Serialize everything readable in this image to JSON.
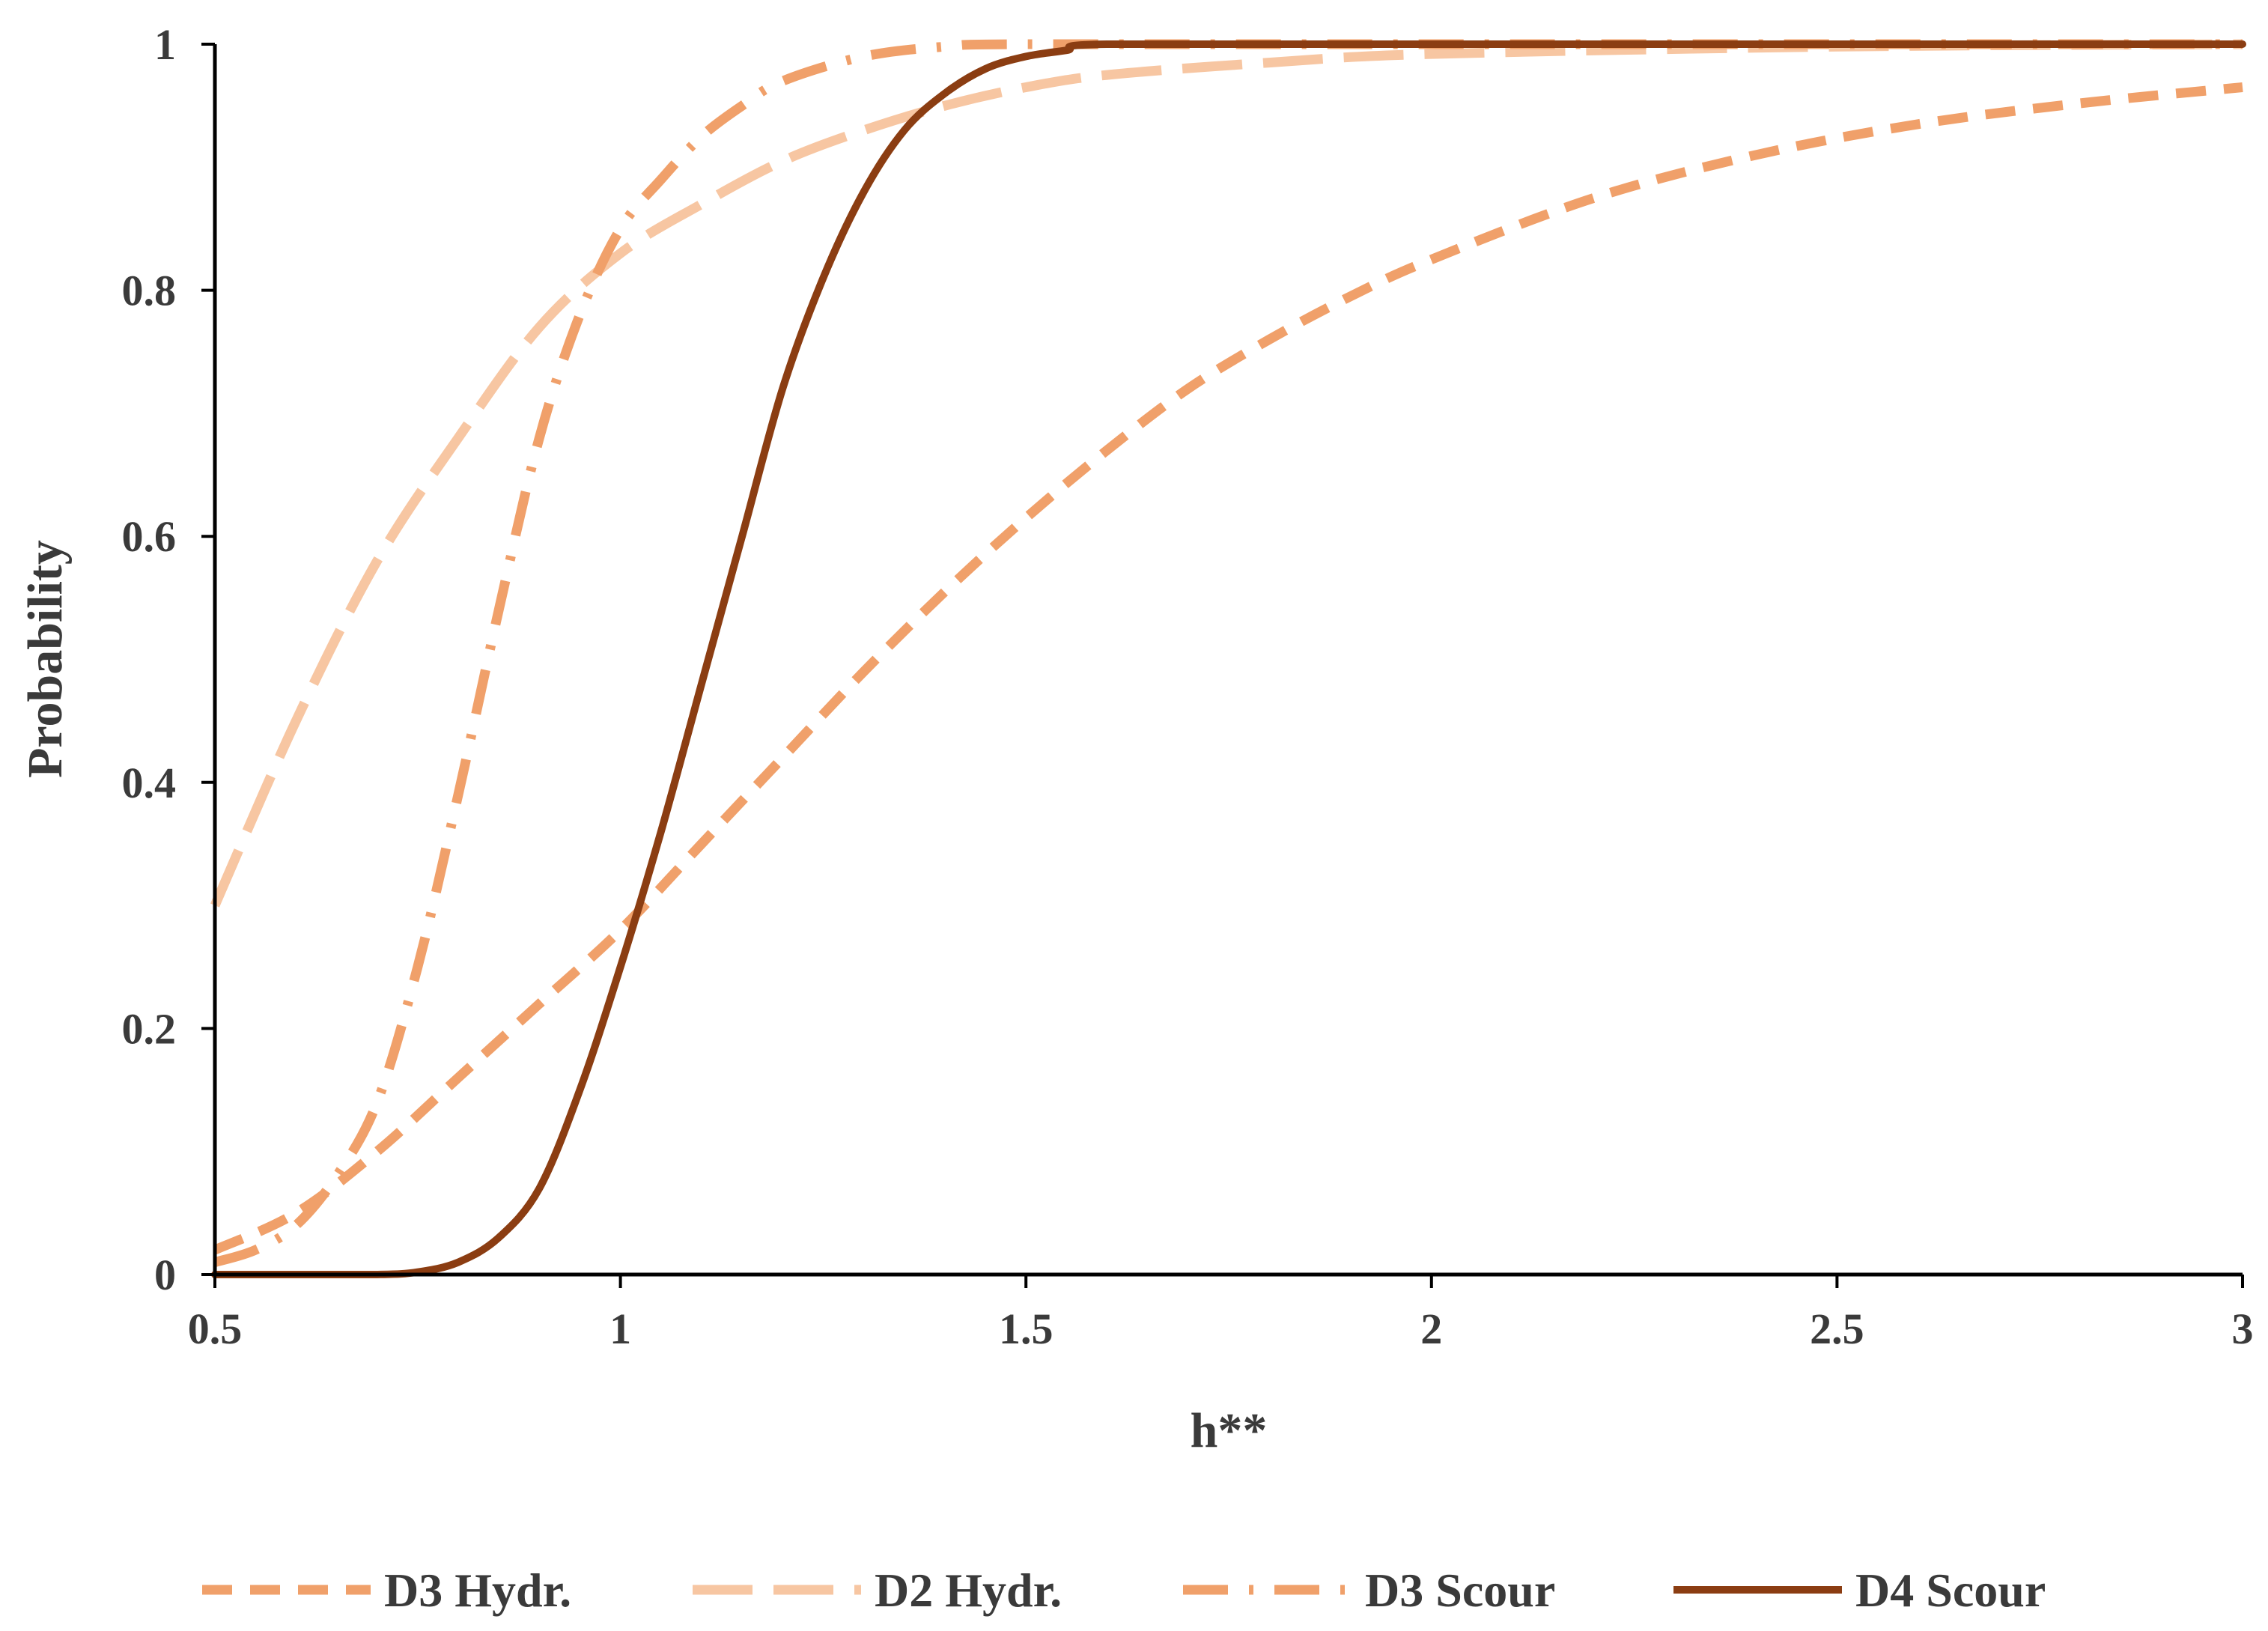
{
  "chart_data": {
    "type": "line",
    "xlabel": "h**",
    "ylabel": "Probability",
    "xlim": [
      0.5,
      3
    ],
    "ylim": [
      0,
      1
    ],
    "x_ticks": [
      "0.5",
      "1",
      "1.5",
      "2",
      "2.5",
      "3"
    ],
    "y_ticks": [
      "0",
      "0.2",
      "0.4",
      "0.6",
      "0.8",
      "1"
    ],
    "grid": false,
    "legend_position": "bottom",
    "series": [
      {
        "name": "D3 Hydr.",
        "color": "#f0a06a",
        "style": "short-dash",
        "x": [
          0.5,
          0.6,
          0.7,
          0.8,
          0.9,
          1.0,
          1.1,
          1.2,
          1.3,
          1.4,
          1.5,
          1.6,
          1.7,
          1.8,
          1.9,
          2.0,
          2.2,
          2.4,
          2.6,
          2.8,
          3.0
        ],
        "y": [
          0.02,
          0.05,
          0.1,
          0.16,
          0.22,
          0.28,
          0.35,
          0.42,
          0.49,
          0.555,
          0.615,
          0.67,
          0.72,
          0.76,
          0.795,
          0.825,
          0.875,
          0.91,
          0.935,
          0.952,
          0.965
        ]
      },
      {
        "name": "D2 Hydr.",
        "color": "#f7c6a2",
        "style": "long-dash",
        "x": [
          0.5,
          0.6,
          0.7,
          0.8,
          0.9,
          1.0,
          1.1,
          1.2,
          1.3,
          1.4,
          1.5,
          1.6,
          1.8,
          2.0,
          2.5,
          3.0
        ],
        "y": [
          0.3,
          0.45,
          0.58,
          0.68,
          0.77,
          0.83,
          0.87,
          0.905,
          0.93,
          0.95,
          0.965,
          0.975,
          0.985,
          0.992,
          0.998,
          1.0
        ]
      },
      {
        "name": "D3 Scour",
        "color": "#f0a06a",
        "style": "dash-dot",
        "x": [
          0.5,
          0.55,
          0.6,
          0.65,
          0.7,
          0.75,
          0.8,
          0.85,
          0.9,
          0.95,
          1.0,
          1.05,
          1.1,
          1.15,
          1.2,
          1.3,
          1.4,
          1.5,
          2.0,
          3.0
        ],
        "y": [
          0.01,
          0.02,
          0.04,
          0.08,
          0.14,
          0.25,
          0.39,
          0.54,
          0.68,
          0.78,
          0.85,
          0.89,
          0.925,
          0.95,
          0.97,
          0.99,
          0.998,
          1.0,
          1.0,
          1.0
        ]
      },
      {
        "name": "D4 Scour",
        "color": "#8b3d12",
        "style": "solid",
        "x": [
          0.5,
          0.6,
          0.7,
          0.75,
          0.8,
          0.85,
          0.9,
          0.95,
          1.0,
          1.05,
          1.1,
          1.15,
          1.2,
          1.25,
          1.3,
          1.35,
          1.4,
          1.45,
          1.5,
          1.55,
          1.6,
          2.0,
          3.0
        ],
        "y": [
          0.0,
          0.0,
          0.0,
          0.002,
          0.01,
          0.03,
          0.07,
          0.15,
          0.25,
          0.36,
          0.48,
          0.6,
          0.72,
          0.81,
          0.88,
          0.93,
          0.96,
          0.98,
          0.99,
          0.995,
          1.0,
          1.0,
          1.0
        ]
      }
    ]
  }
}
